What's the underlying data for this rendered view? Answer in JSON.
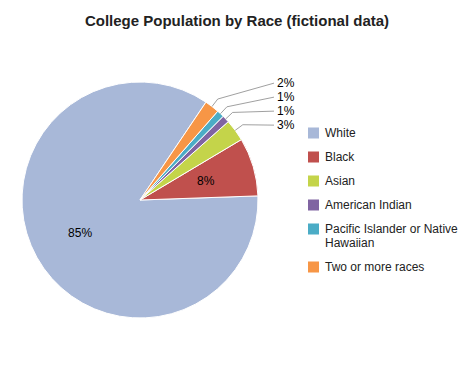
{
  "chart_data": {
    "type": "pie",
    "title": "College Population by Race (fictional data)",
    "categories": [
      "White",
      "Black",
      "Asian",
      "American Indian",
      "Pacific Islander or Native\nHawaiian",
      "Two or more races"
    ],
    "values": [
      85,
      8,
      3,
      1,
      1,
      2
    ],
    "value_labels": [
      "85%",
      "8%",
      "3%",
      "1%",
      "1%",
      "2%"
    ],
    "colors": [
      "#a8b8d8",
      "#c0504d",
      "#c4d44a",
      "#8064a2",
      "#4bacc6",
      "#f79646"
    ],
    "data_labels": true,
    "legend": "right"
  }
}
